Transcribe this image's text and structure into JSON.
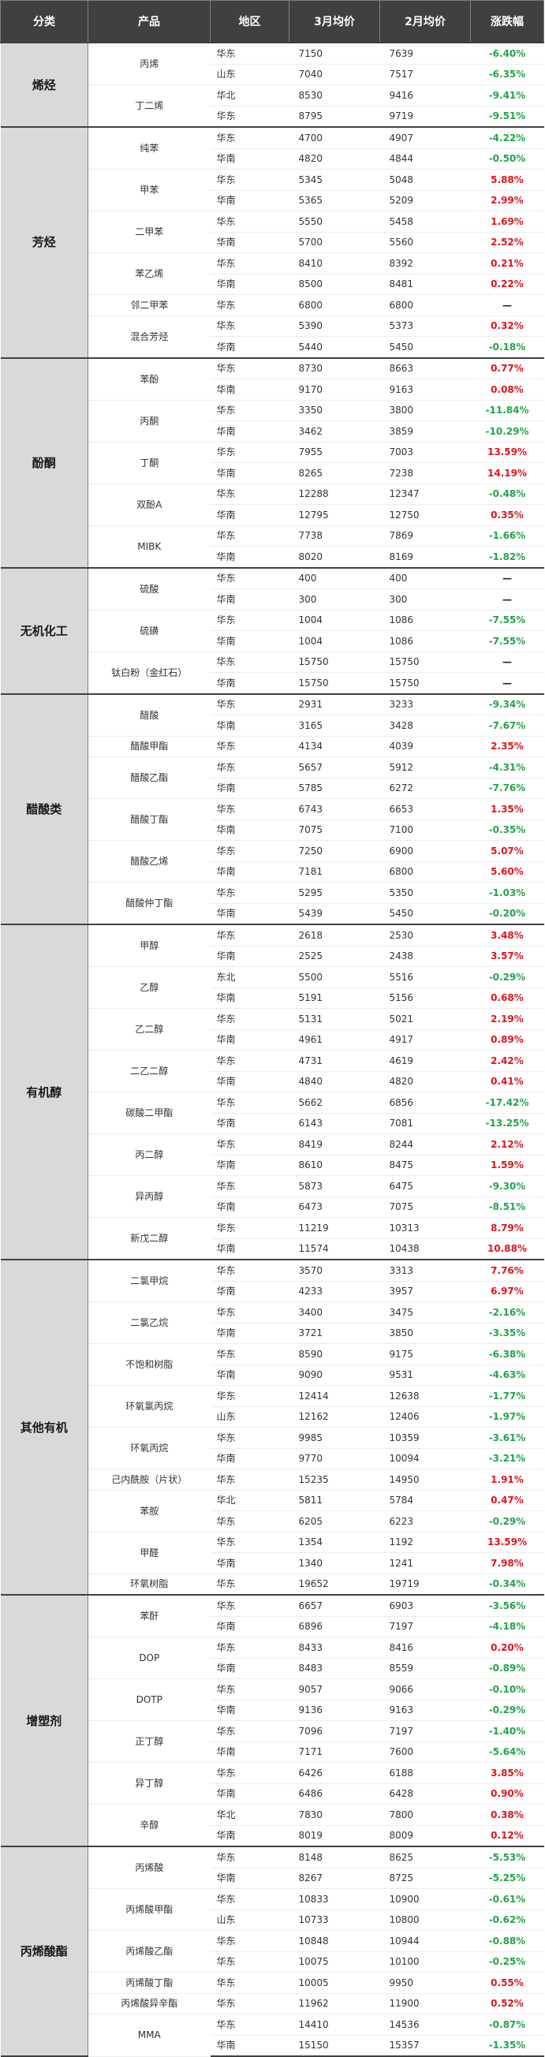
{
  "header": [
    "分类",
    "产品",
    "地区",
    "3月均价",
    "2月均价",
    "涨跌幅"
  ],
  "groups": [
    {
      "name": "烯烃",
      "products": [
        {
          "name": "丙烯",
          "rows": [
            [
              "华东",
              "7150",
              "7639",
              "-6.40%"
            ],
            [
              "山东",
              "7040",
              "7517",
              "-6.35%"
            ]
          ]
        },
        {
          "name": "丁二烯",
          "rows": [
            [
              "华北",
              "8530",
              "9416",
              "-9.41%"
            ],
            [
              "华东",
              "8795",
              "9719",
              "-9.51%"
            ]
          ]
        }
      ]
    },
    {
      "name": "芳烃",
      "products": [
        {
          "name": "纯苯",
          "rows": [
            [
              "华东",
              "4700",
              "4907",
              "-4.22%"
            ],
            [
              "华南",
              "4820",
              "4844",
              "-0.50%"
            ]
          ]
        },
        {
          "name": "甲苯",
          "rows": [
            [
              "华东",
              "5345",
              "5048",
              "5.88%"
            ],
            [
              "华南",
              "5365",
              "5209",
              "2.99%"
            ]
          ]
        },
        {
          "name": "二甲苯",
          "rows": [
            [
              "华东",
              "5550",
              "5458",
              "1.69%"
            ],
            [
              "华南",
              "5700",
              "5560",
              "2.52%"
            ]
          ]
        },
        {
          "name": "苯乙烯",
          "rows": [
            [
              "华东",
              "8410",
              "8392",
              "0.21%"
            ],
            [
              "华南",
              "8500",
              "8481",
              "0.22%"
            ]
          ]
        },
        {
          "name": "邻二甲苯",
          "rows": [
            [
              "华东",
              "6800",
              "6800",
              "—"
            ]
          ]
        },
        {
          "name": "混合芳烃",
          "rows": [
            [
              "华东",
              "5390",
              "5373",
              "0.32%"
            ],
            [
              "华南",
              "5440",
              "5450",
              "-0.18%"
            ]
          ]
        }
      ]
    },
    {
      "name": "酚酮",
      "products": [
        {
          "name": "苯酚",
          "rows": [
            [
              "华东",
              "8730",
              "8663",
              "0.77%"
            ],
            [
              "华南",
              "9170",
              "9163",
              "0.08%"
            ]
          ]
        },
        {
          "name": "丙酮",
          "rows": [
            [
              "华东",
              "3350",
              "3800",
              "-11.84%"
            ],
            [
              "华南",
              "3462",
              "3859",
              "-10.29%"
            ]
          ]
        },
        {
          "name": "丁酮",
          "rows": [
            [
              "华东",
              "7955",
              "7003",
              "13.59%"
            ],
            [
              "华南",
              "8265",
              "7238",
              "14.19%"
            ]
          ]
        },
        {
          "name": "双酚A",
          "rows": [
            [
              "华东",
              "12288",
              "12347",
              "-0.48%"
            ],
            [
              "华南",
              "12795",
              "12750",
              "0.35%"
            ]
          ]
        },
        {
          "name": "MIBK",
          "rows": [
            [
              "华东",
              "7738",
              "7869",
              "-1.66%"
            ],
            [
              "华南",
              "8020",
              "8169",
              "-1.82%"
            ]
          ]
        }
      ]
    },
    {
      "name": "无机化工",
      "products": [
        {
          "name": "硫酸",
          "rows": [
            [
              "华东",
              "400",
              "400",
              "—"
            ],
            [
              "华南",
              "300",
              "300",
              "—"
            ]
          ]
        },
        {
          "name": "硫磺",
          "rows": [
            [
              "华东",
              "1004",
              "1086",
              "-7.55%"
            ],
            [
              "华南",
              "1004",
              "1086",
              "-7.55%"
            ]
          ]
        },
        {
          "name": "钛白粉（金红石）",
          "rows": [
            [
              "华东",
              "15750",
              "15750",
              "—"
            ],
            [
              "华南",
              "15750",
              "15750",
              "—"
            ]
          ]
        }
      ]
    },
    {
      "name": "醋酸类",
      "products": [
        {
          "name": "醋酸",
          "rows": [
            [
              "华东",
              "2931",
              "3233",
              "-9.34%"
            ],
            [
              "华南",
              "3165",
              "3428",
              "-7.67%"
            ]
          ]
        },
        {
          "name": "醋酸甲酯",
          "rows": [
            [
              "华东",
              "4134",
              "4039",
              "2.35%"
            ]
          ]
        },
        {
          "name": "醋酸乙酯",
          "rows": [
            [
              "华东",
              "5657",
              "5912",
              "-4.31%"
            ],
            [
              "华南",
              "5785",
              "6272",
              "-7.76%"
            ]
          ]
        },
        {
          "name": "醋酸丁酯",
          "rows": [
            [
              "华东",
              "6743",
              "6653",
              "1.35%"
            ],
            [
              "华南",
              "7075",
              "7100",
              "-0.35%"
            ]
          ]
        },
        {
          "name": "醋酸乙烯",
          "rows": [
            [
              "华东",
              "7250",
              "6900",
              "5.07%"
            ],
            [
              "华南",
              "7181",
              "6800",
              "5.60%"
            ]
          ]
        },
        {
          "name": "醋酸仲丁酯",
          "rows": [
            [
              "华东",
              "5295",
              "5350",
              "-1.03%"
            ],
            [
              "华南",
              "5439",
              "5450",
              "-0.20%"
            ]
          ]
        }
      ]
    },
    {
      "name": "有机醇",
      "products": [
        {
          "name": "甲醇",
          "rows": [
            [
              "华东",
              "2618",
              "2530",
              "3.48%"
            ],
            [
              "华南",
              "2525",
              "2438",
              "3.57%"
            ]
          ]
        },
        {
          "name": "乙醇",
          "rows": [
            [
              "东北",
              "5500",
              "5516",
              "-0.29%"
            ],
            [
              "华南",
              "5191",
              "5156",
              "0.68%"
            ]
          ]
        },
        {
          "name": "乙二醇",
          "rows": [
            [
              "华东",
              "5131",
              "5021",
              "2.19%"
            ],
            [
              "华南",
              "4961",
              "4917",
              "0.89%"
            ]
          ]
        },
        {
          "name": "二乙二醇",
          "rows": [
            [
              "华东",
              "4731",
              "4619",
              "2.42%"
            ],
            [
              "华南",
              "4840",
              "4820",
              "0.41%"
            ]
          ]
        },
        {
          "name": "碳酸二甲酯",
          "rows": [
            [
              "华东",
              "5662",
              "6856",
              "-17.42%"
            ],
            [
              "华南",
              "6143",
              "7081",
              "-13.25%"
            ]
          ]
        },
        {
          "name": "丙二醇",
          "rows": [
            [
              "华东",
              "8419",
              "8244",
              "2.12%"
            ],
            [
              "华南",
              "8610",
              "8475",
              "1.59%"
            ]
          ]
        },
        {
          "name": "异丙醇",
          "rows": [
            [
              "华东",
              "5873",
              "6475",
              "-9.30%"
            ],
            [
              "华南",
              "6473",
              "7075",
              "-8.51%"
            ]
          ]
        },
        {
          "name": "新戊二醇",
          "rows": [
            [
              "华东",
              "11219",
              "10313",
              "8.79%"
            ],
            [
              "华南",
              "11574",
              "10438",
              "10.88%"
            ]
          ]
        }
      ]
    },
    {
      "name": "其他有机",
      "products": [
        {
          "name": "二氯甲烷",
          "rows": [
            [
              "华东",
              "3570",
              "3313",
              "7.76%"
            ],
            [
              "华南",
              "4233",
              "3957",
              "6.97%"
            ]
          ]
        },
        {
          "name": "二氯乙烷",
          "rows": [
            [
              "华东",
              "3400",
              "3475",
              "-2.16%"
            ],
            [
              "华南",
              "3721",
              "3850",
              "-3.35%"
            ]
          ]
        },
        {
          "name": "不饱和树脂",
          "rows": [
            [
              "华东",
              "8590",
              "9175",
              "-6.38%"
            ],
            [
              "华南",
              "9090",
              "9531",
              "-4.63%"
            ]
          ]
        },
        {
          "name": "环氧氯丙烷",
          "rows": [
            [
              "华东",
              "12414",
              "12638",
              "-1.77%"
            ],
            [
              "山东",
              "12162",
              "12406",
              "-1.97%"
            ]
          ]
        },
        {
          "name": "环氧丙烷",
          "rows": [
            [
              "华东",
              "9985",
              "10359",
              "-3.61%"
            ],
            [
              "华南",
              "9770",
              "10094",
              "-3.21%"
            ]
          ]
        },
        {
          "name": "己内酰胺（片状）",
          "rows": [
            [
              "华东",
              "15235",
              "14950",
              "1.91%"
            ]
          ]
        },
        {
          "name": "苯胺",
          "rows": [
            [
              "华北",
              "5811",
              "5784",
              "0.47%"
            ],
            [
              "华东",
              "6205",
              "6223",
              "-0.29%"
            ]
          ]
        },
        {
          "name": "甲醛",
          "rows": [
            [
              "华东",
              "1354",
              "1192",
              "13.59%"
            ],
            [
              "华南",
              "1340",
              "1241",
              "7.98%"
            ]
          ]
        },
        {
          "name": "环氧树脂",
          "rows": [
            [
              "华东",
              "19652",
              "19719",
              "-0.34%"
            ]
          ]
        }
      ]
    },
    {
      "name": "增塑剂",
      "products": [
        {
          "name": "苯酐",
          "rows": [
            [
              "华东",
              "6657",
              "6903",
              "-3.56%"
            ],
            [
              "华南",
              "6896",
              "7197",
              "-4.18%"
            ]
          ]
        },
        {
          "name": "DOP",
          "rows": [
            [
              "华东",
              "8433",
              "8416",
              "0.20%"
            ],
            [
              "华南",
              "8483",
              "8559",
              "-0.89%"
            ]
          ]
        },
        {
          "name": "DOTP",
          "rows": [
            [
              "华东",
              "9057",
              "9066",
              "-0.10%"
            ],
            [
              "华南",
              "9136",
              "9163",
              "-0.29%"
            ]
          ]
        },
        {
          "name": "正丁醇",
          "rows": [
            [
              "华东",
              "7096",
              "7197",
              "-1.40%"
            ],
            [
              "华南",
              "7171",
              "7600",
              "-5.64%"
            ]
          ]
        },
        {
          "name": "异丁醇",
          "rows": [
            [
              "华东",
              "6426",
              "6188",
              "3.85%"
            ],
            [
              "华南",
              "6486",
              "6428",
              "0.90%"
            ]
          ]
        },
        {
          "name": "辛醇",
          "rows": [
            [
              "华北",
              "7830",
              "7800",
              "0.38%"
            ],
            [
              "华南",
              "8019",
              "8009",
              "0.12%"
            ]
          ]
        }
      ]
    },
    {
      "name": "丙烯酸酯",
      "products": [
        {
          "name": "丙烯酸",
          "rows": [
            [
              "华东",
              "8148",
              "8625",
              "-5.53%"
            ],
            [
              "华南",
              "8267",
              "8725",
              "-5.25%"
            ]
          ]
        },
        {
          "name": "丙烯酸甲酯",
          "rows": [
            [
              "华东",
              "10833",
              "10900",
              "-0.61%"
            ],
            [
              "山东",
              "10733",
              "10800",
              "-0.62%"
            ]
          ]
        },
        {
          "name": "丙烯酸乙酯",
          "rows": [
            [
              "华东",
              "10848",
              "10944",
              "-0.88%"
            ],
            [
              "华东",
              "10075",
              "10100",
              "-0.25%"
            ]
          ]
        },
        {
          "name": "丙烯酸丁酯",
          "rows": [
            [
              "华东",
              "10005",
              "9950",
              "0.55%"
            ]
          ]
        },
        {
          "name": "丙烯酸异辛酯",
          "rows": [
            [
              "华东",
              "11962",
              "11900",
              "0.52%"
            ]
          ]
        },
        {
          "name": "MMA",
          "rows": [
            [
              "华东",
              "14410",
              "14536",
              "-0.87%"
            ],
            [
              "华南",
              "15150",
              "15357",
              "-1.35%"
            ]
          ]
        }
      ]
    }
  ]
}
